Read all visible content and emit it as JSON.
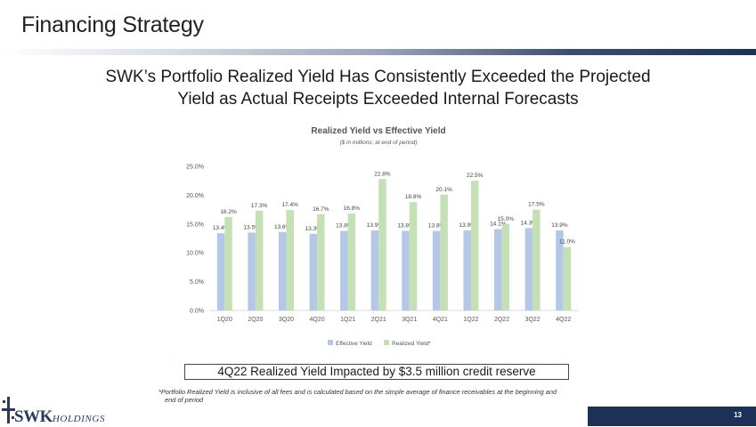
{
  "slide": {
    "title": "Financing Strategy",
    "headline_line1": "SWK’s Portfolio Realized Yield Has Consistently Exceeded the Projected",
    "headline_line2": "Yield as Actual Receipts Exceeded Internal Forecasts",
    "callout": "4Q22 Realized Yield Impacted by $3.5 million credit reserve",
    "footnote_line1": "*Portfolio Realized Yield is inclusive of all fees and is calculated based on the simple average of finance receivables at the beginning and",
    "footnote_line2": "end of period",
    "page_number": "13"
  },
  "logo": {
    "swk": "SWK",
    "holdings": "HOLDINGS"
  },
  "colors": {
    "effective": "#b4c7e7",
    "realized": "#c5e0b4",
    "navy": "#1d3157"
  },
  "chart_data": {
    "type": "bar",
    "title": "Realized Yield vs Effective Yield",
    "subtitle": "($ in millions; at end of period)",
    "xlabel": "",
    "ylabel": "",
    "ylim": [
      0,
      25
    ],
    "yticks": [
      "0.0%",
      "5.0%",
      "10.0%",
      "15.0%",
      "20.0%",
      "25.0%"
    ],
    "grid": false,
    "legend_position": "bottom",
    "categories": [
      "1Q20",
      "2Q20",
      "3Q20",
      "4Q20",
      "1Q21",
      "2Q21",
      "3Q21",
      "4Q21",
      "1Q22",
      "2Q22",
      "3Q22",
      "4Q22"
    ],
    "series": [
      {
        "name": "Effective Yield",
        "values": [
          13.4,
          13.5,
          13.6,
          13.3,
          13.8,
          13.9,
          13.8,
          13.8,
          13.9,
          14.1,
          14.3,
          13.9
        ],
        "labels": [
          "13.4%",
          "13.5%",
          "13.6%",
          "13.3%",
          "13.8%",
          "13.9%",
          "13.8%",
          "13.8%",
          "13.9%",
          "14.1%",
          "14.3%",
          "13.9%"
        ]
      },
      {
        "name": "Realized Yield*",
        "values": [
          16.2,
          17.3,
          17.4,
          16.7,
          16.8,
          22.8,
          18.8,
          20.1,
          22.5,
          15.0,
          17.5,
          11.0
        ],
        "labels": [
          "16.2%",
          "17.3%",
          "17.4%",
          "16.7%",
          "16.8%",
          "22.8%",
          "18.8%",
          "20.1%",
          "22.5%",
          "15.0%",
          "17.5%",
          "11.0%"
        ]
      }
    ]
  }
}
